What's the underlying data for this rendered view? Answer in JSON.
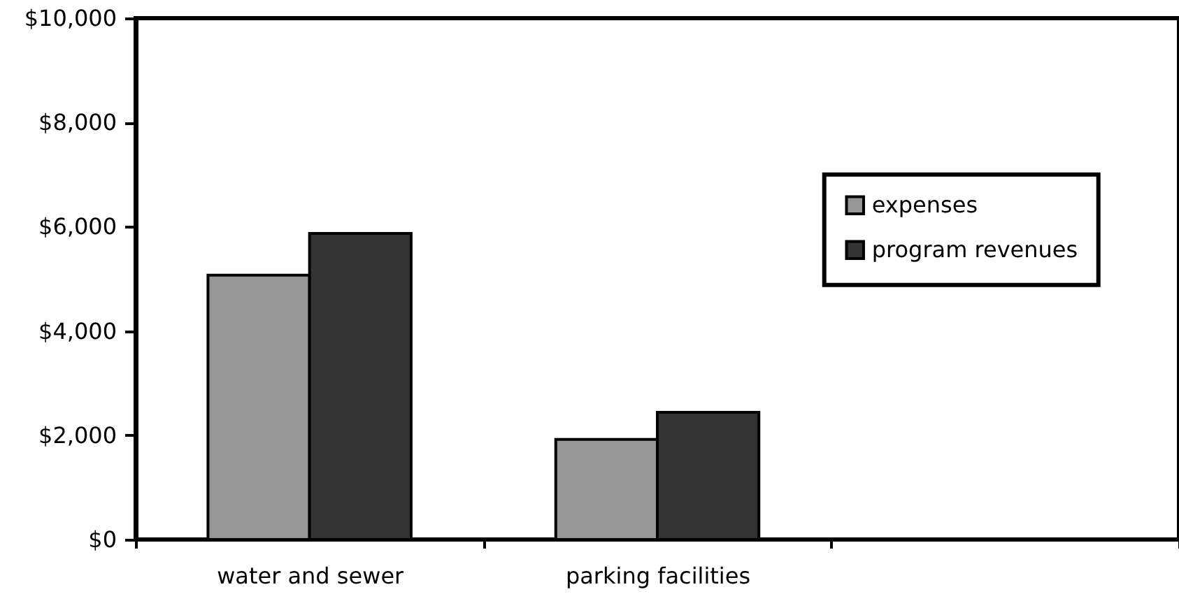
{
  "chart_data": {
    "type": "bar",
    "categories": [
      "water and sewer",
      "parking facilities",
      null
    ],
    "series": [
      {
        "name": "expenses",
        "color": "#969696",
        "values": [
          5070,
          1920,
          null
        ]
      },
      {
        "name": "program revenues",
        "color": "#333333",
        "values": [
          5870,
          2440,
          null
        ]
      }
    ],
    "ylim": [
      0,
      10000
    ],
    "yticks": [
      {
        "value": 0,
        "label": "$0"
      },
      {
        "value": 2000,
        "label": "$2,000"
      },
      {
        "value": 4000,
        "label": "$4,000"
      },
      {
        "value": 6000,
        "label": "$6,000"
      },
      {
        "value": 8000,
        "label": "$8,000"
      },
      {
        "value": 10000,
        "label": "$10,000"
      }
    ],
    "grid": false,
    "legend": "right"
  }
}
